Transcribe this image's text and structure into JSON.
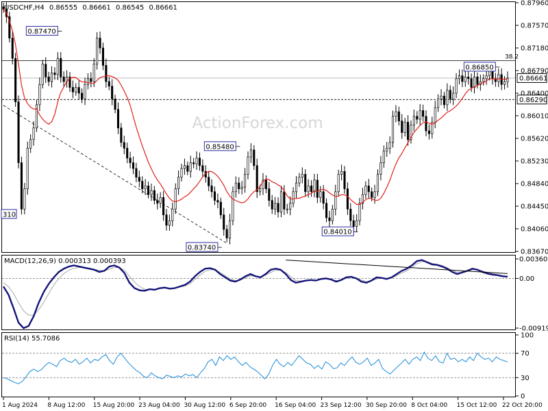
{
  "chart_data": [
    {
      "type": "candlestick",
      "panel": "price",
      "title": "USDCHF,H4",
      "ohlc": {
        "open": "0.86555",
        "high": "0.86661",
        "low": "0.86545",
        "close": "0.86661"
      },
      "watermark": "ActionForex.com",
      "ylim": [
        0.8367,
        0.8796
      ],
      "yticks": [
        "0.87960",
        "0.87570",
        "0.87180",
        "0.86790",
        "0.86400",
        "0.86010",
        "0.85620",
        "0.85230",
        "0.84840",
        "0.84450",
        "0.84060",
        "0.83670"
      ],
      "price_tags": [
        {
          "label": "0.86661",
          "value": 0.86661
        },
        {
          "label": "0.86290",
          "value": 0.8629
        }
      ],
      "fib_label": "38.2",
      "fib_level": 0.8696,
      "support_level": 0.8629,
      "current_level": 0.86661,
      "annotations": [
        {
          "label": "0.87470",
          "x": 18,
          "value": 0.8747,
          "side": "left"
        },
        {
          "label": "0.85480",
          "x": 77,
          "value": 0.8548,
          "side": "left"
        },
        {
          "label": "0.83740",
          "x": 71,
          "value": 0.8374,
          "side": "left"
        },
        {
          "label": "0.84010",
          "x": 116,
          "value": 0.8401,
          "side": "left"
        },
        {
          "label": "0.86850",
          "x": 163,
          "value": 0.8685,
          "side": "left"
        },
        {
          "label": "310",
          "x": 0,
          "value": 0.8431,
          "side": "edge"
        }
      ],
      "trendline": {
        "from": {
          "x": 0,
          "value": 0.8619
        },
        "to": {
          "x": 74,
          "value": 0.8381
        }
      },
      "closes": [
        0.8785,
        0.8772,
        0.8735,
        0.87,
        0.8625,
        0.852,
        0.844,
        0.8475,
        0.8545,
        0.856,
        0.858,
        0.862,
        0.8655,
        0.869,
        0.8668,
        0.866,
        0.8675,
        0.8672,
        0.87,
        0.8668,
        0.866,
        0.8668,
        0.865,
        0.8642,
        0.865,
        0.864,
        0.863,
        0.8655,
        0.8665,
        0.866,
        0.869,
        0.8735,
        0.8718,
        0.8688,
        0.866,
        0.8652,
        0.863,
        0.8612,
        0.858,
        0.8555,
        0.8545,
        0.8528,
        0.852,
        0.851,
        0.8495,
        0.8488,
        0.8475,
        0.848,
        0.8465,
        0.8472,
        0.8455,
        0.845,
        0.846,
        0.843,
        0.8412,
        0.842,
        0.844,
        0.8475,
        0.8495,
        0.851,
        0.8515,
        0.8505,
        0.852,
        0.8518,
        0.8528,
        0.8515,
        0.8505,
        0.8495,
        0.848,
        0.847,
        0.8455,
        0.8452,
        0.843,
        0.8405,
        0.839,
        0.842,
        0.847,
        0.8485,
        0.8475,
        0.8478,
        0.85,
        0.853,
        0.8542,
        0.8515,
        0.847,
        0.8475,
        0.849,
        0.8475,
        0.8455,
        0.844,
        0.845,
        0.8435,
        0.847,
        0.844,
        0.844,
        0.845,
        0.847,
        0.8485,
        0.8495,
        0.85,
        0.847,
        0.848,
        0.847,
        0.849,
        0.846,
        0.847,
        0.845,
        0.8425,
        0.842,
        0.844,
        0.847,
        0.85,
        0.8505,
        0.8475,
        0.844,
        0.842,
        0.841,
        0.842,
        0.845,
        0.8465,
        0.848,
        0.847,
        0.846,
        0.847,
        0.85,
        0.852,
        0.854,
        0.8545,
        0.8555,
        0.86,
        0.8608,
        0.8592,
        0.8572,
        0.859,
        0.856,
        0.8585,
        0.86,
        0.8595,
        0.861,
        0.86,
        0.8575,
        0.857,
        0.859,
        0.8615,
        0.863,
        0.8635,
        0.862,
        0.8645,
        0.863,
        0.864,
        0.8665,
        0.867,
        0.866,
        0.8668,
        0.8665,
        0.865,
        0.8668,
        0.8655,
        0.866,
        0.8665,
        0.867,
        0.8682,
        0.8665,
        0.866,
        0.8672,
        0.8655,
        0.866,
        0.8666
      ]
    },
    {
      "type": "line",
      "panel": "macd",
      "title": "MACD(12,26,9) 0.000313 0.000393",
      "ylim": [
        -0.009198,
        0.003603
      ],
      "yticks": [
        "0.003603",
        "0.00",
        "-0.009198"
      ],
      "macd": [
        -0.0015,
        -0.003,
        -0.0055,
        -0.0082,
        -0.0092,
        -0.0088,
        -0.007,
        -0.0045,
        -0.0025,
        -0.001,
        0.0002,
        0.0012,
        0.0018,
        0.0022,
        0.0024,
        0.0022,
        0.002,
        0.0018,
        0.0016,
        0.0012,
        0.0014,
        0.0022,
        0.0024,
        0.002,
        0.001,
        -0.0008,
        -0.0018,
        -0.0022,
        -0.0023,
        -0.002,
        -0.0021,
        -0.0018,
        -0.0017,
        -0.0019,
        -0.0018,
        -0.0015,
        -0.0012,
        -0.0006,
        0.0004,
        0.0012,
        0.0018,
        0.0019,
        0.0016,
        0.0008,
        0.0002,
        -0.0004,
        -0.0006,
        -0.0002,
        0.0004,
        0.0008,
        0.0004,
        0.0002,
        0.0008,
        0.0016,
        0.0018,
        0.0016,
        0.0008,
        -0.0003,
        -0.0008,
        -0.0006,
        -0.0004,
        -0.0003,
        -0.0004,
        -0.0001,
        0.0,
        -0.0002,
        -0.0006,
        -0.0003,
        0.0002,
        0.0003,
        0.0,
        -0.0006,
        -0.0008,
        -0.0004,
        0.0002,
        0.0001,
        -0.0001,
        0.0002,
        0.0008,
        0.0014,
        0.0018,
        0.0024,
        0.0032,
        0.0034,
        0.003,
        0.0026,
        0.0025,
        0.0022,
        0.0018,
        0.0012,
        0.0008,
        0.0011,
        0.0014,
        0.0018,
        0.0016,
        0.0012,
        0.0009,
        0.0007,
        0.0006,
        0.0004,
        0.00031
      ],
      "signal": [
        -0.0008,
        -0.0015,
        -0.0028,
        -0.0045,
        -0.006,
        -0.0068,
        -0.0068,
        -0.0058,
        -0.0044,
        -0.0028,
        -0.0012,
        0.0,
        0.0009,
        0.0015,
        0.0019,
        0.002,
        0.002,
        0.0019,
        0.0017,
        0.0015,
        0.0014,
        0.0017,
        0.002,
        0.002,
        0.0015,
        0.0004,
        -0.0007,
        -0.0015,
        -0.002,
        -0.0021,
        -0.0021,
        -0.0019,
        -0.0018,
        -0.0018,
        -0.0018,
        -0.0016,
        -0.0014,
        -0.001,
        -0.0002,
        0.0006,
        0.0013,
        0.0016,
        0.0016,
        0.0011,
        0.0005,
        -0.0001,
        -0.0004,
        -0.0003,
        0.0001,
        0.0005,
        0.0004,
        0.0003,
        0.0006,
        0.0011,
        0.0015,
        0.0015,
        0.0011,
        0.0003,
        -0.0004,
        -0.0005,
        -0.0004,
        -0.0003,
        -0.0004,
        -0.0002,
        -0.0001,
        -0.0002,
        -0.0004,
        -0.0003,
        0.0,
        0.0002,
        0.0001,
        -0.0003,
        -0.0006,
        -0.0005,
        -0.0001,
        0.0,
        -0.0001,
        0.0001,
        0.0005,
        0.001,
        0.0014,
        0.002,
        0.0027,
        0.0031,
        0.0031,
        0.0028,
        0.0026,
        0.0024,
        0.002,
        0.0015,
        0.0011,
        0.0011,
        0.0013,
        0.0016,
        0.0016,
        0.0014,
        0.0011,
        0.0009,
        0.0007,
        0.0005,
        0.00039
      ],
      "divergence_line": {
        "from": {
          "x": 56,
          "value": 0.0034
        },
        "to": {
          "x": 72,
          "value": 0.0009
        }
      }
    },
    {
      "type": "line",
      "panel": "rsi",
      "title": "RSI(14) 55.7086",
      "ylim": [
        0,
        100
      ],
      "yticks": [
        "100",
        "70",
        "30",
        "0"
      ],
      "levels": [
        70,
        30
      ],
      "values": [
        30,
        28,
        25,
        22,
        20,
        24,
        32,
        40,
        44,
        40,
        43,
        50,
        55,
        52,
        48,
        58,
        62,
        57,
        55,
        60,
        52,
        56,
        62,
        54,
        60,
        58,
        64,
        68,
        58,
        52,
        64,
        70,
        62,
        54,
        48,
        42,
        38,
        32,
        30,
        38,
        33,
        30,
        28,
        34,
        32,
        30,
        33,
        31,
        36,
        33,
        35,
        30,
        38,
        45,
        56,
        60,
        50,
        64,
        58,
        66,
        60,
        64,
        56,
        50,
        55,
        48,
        44,
        40,
        34,
        28,
        36,
        50,
        60,
        52,
        48,
        55,
        50,
        58,
        66,
        60,
        54,
        52,
        45,
        50,
        44,
        56,
        52,
        45,
        46,
        54,
        50,
        58,
        64,
        55,
        52,
        56,
        62,
        50,
        54,
        60,
        45,
        40,
        36,
        42,
        48,
        54,
        60,
        52,
        60,
        64,
        58,
        72,
        62,
        58,
        66,
        56,
        54,
        70,
        60,
        62,
        56,
        60,
        56,
        64,
        58,
        70,
        64,
        60,
        62,
        56,
        64,
        60,
        58,
        55.7
      ]
    },
    {
      "type": "axis",
      "panel": "time",
      "xlabels": [
        "1 Aug 2024",
        "8 Aug 12:00",
        "15 Aug 20:00",
        "23 Aug 04:00",
        "30 Aug 12:00",
        "6 Sep 20:00",
        "16 Sep 04:00",
        "23 Sep 12:00",
        "30 Sep 20:00",
        "8 Oct 04:00",
        "15 Oct 12:00",
        "22 Oct 20:00"
      ]
    }
  ]
}
